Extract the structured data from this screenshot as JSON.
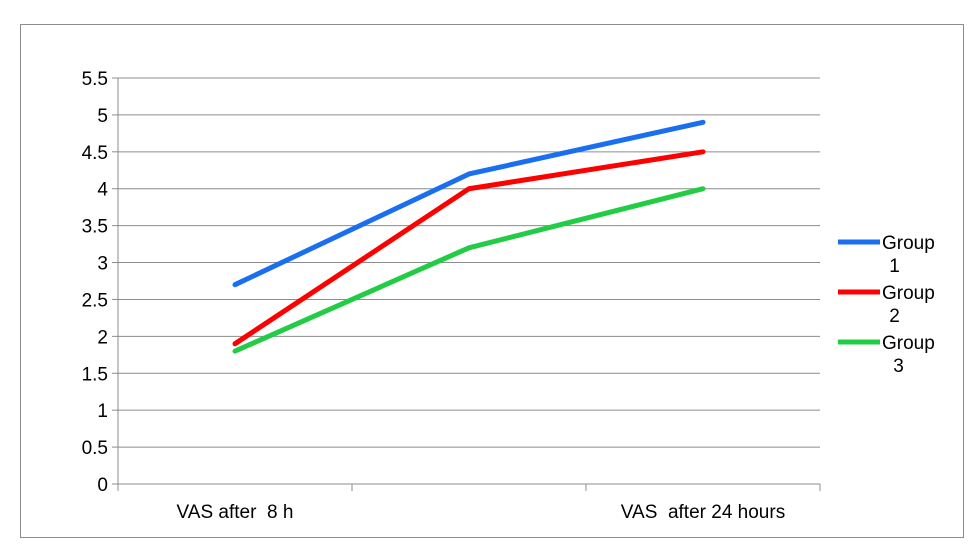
{
  "chart_data": {
    "type": "line",
    "categories": [
      "VAS after  8 h",
      "",
      "VAS  after 24 hours"
    ],
    "series": [
      {
        "name": "Group 1",
        "values": [
          2.7,
          4.2,
          4.9
        ],
        "color": "#1a6ff0"
      },
      {
        "name": "Group 2",
        "values": [
          1.9,
          4.0,
          4.5
        ],
        "color": "#ff0000"
      },
      {
        "name": "Group 3",
        "values": [
          1.8,
          3.2,
          4.0
        ],
        "color": "#22cc44"
      }
    ],
    "ylim": [
      0,
      5.5
    ],
    "yticks": [
      "0",
      "0.5",
      "1",
      "1.5",
      "2",
      "2.5",
      "3",
      "3.5",
      "4",
      "4.5",
      "5",
      "5.5"
    ],
    "grid": true,
    "legend": "right"
  }
}
